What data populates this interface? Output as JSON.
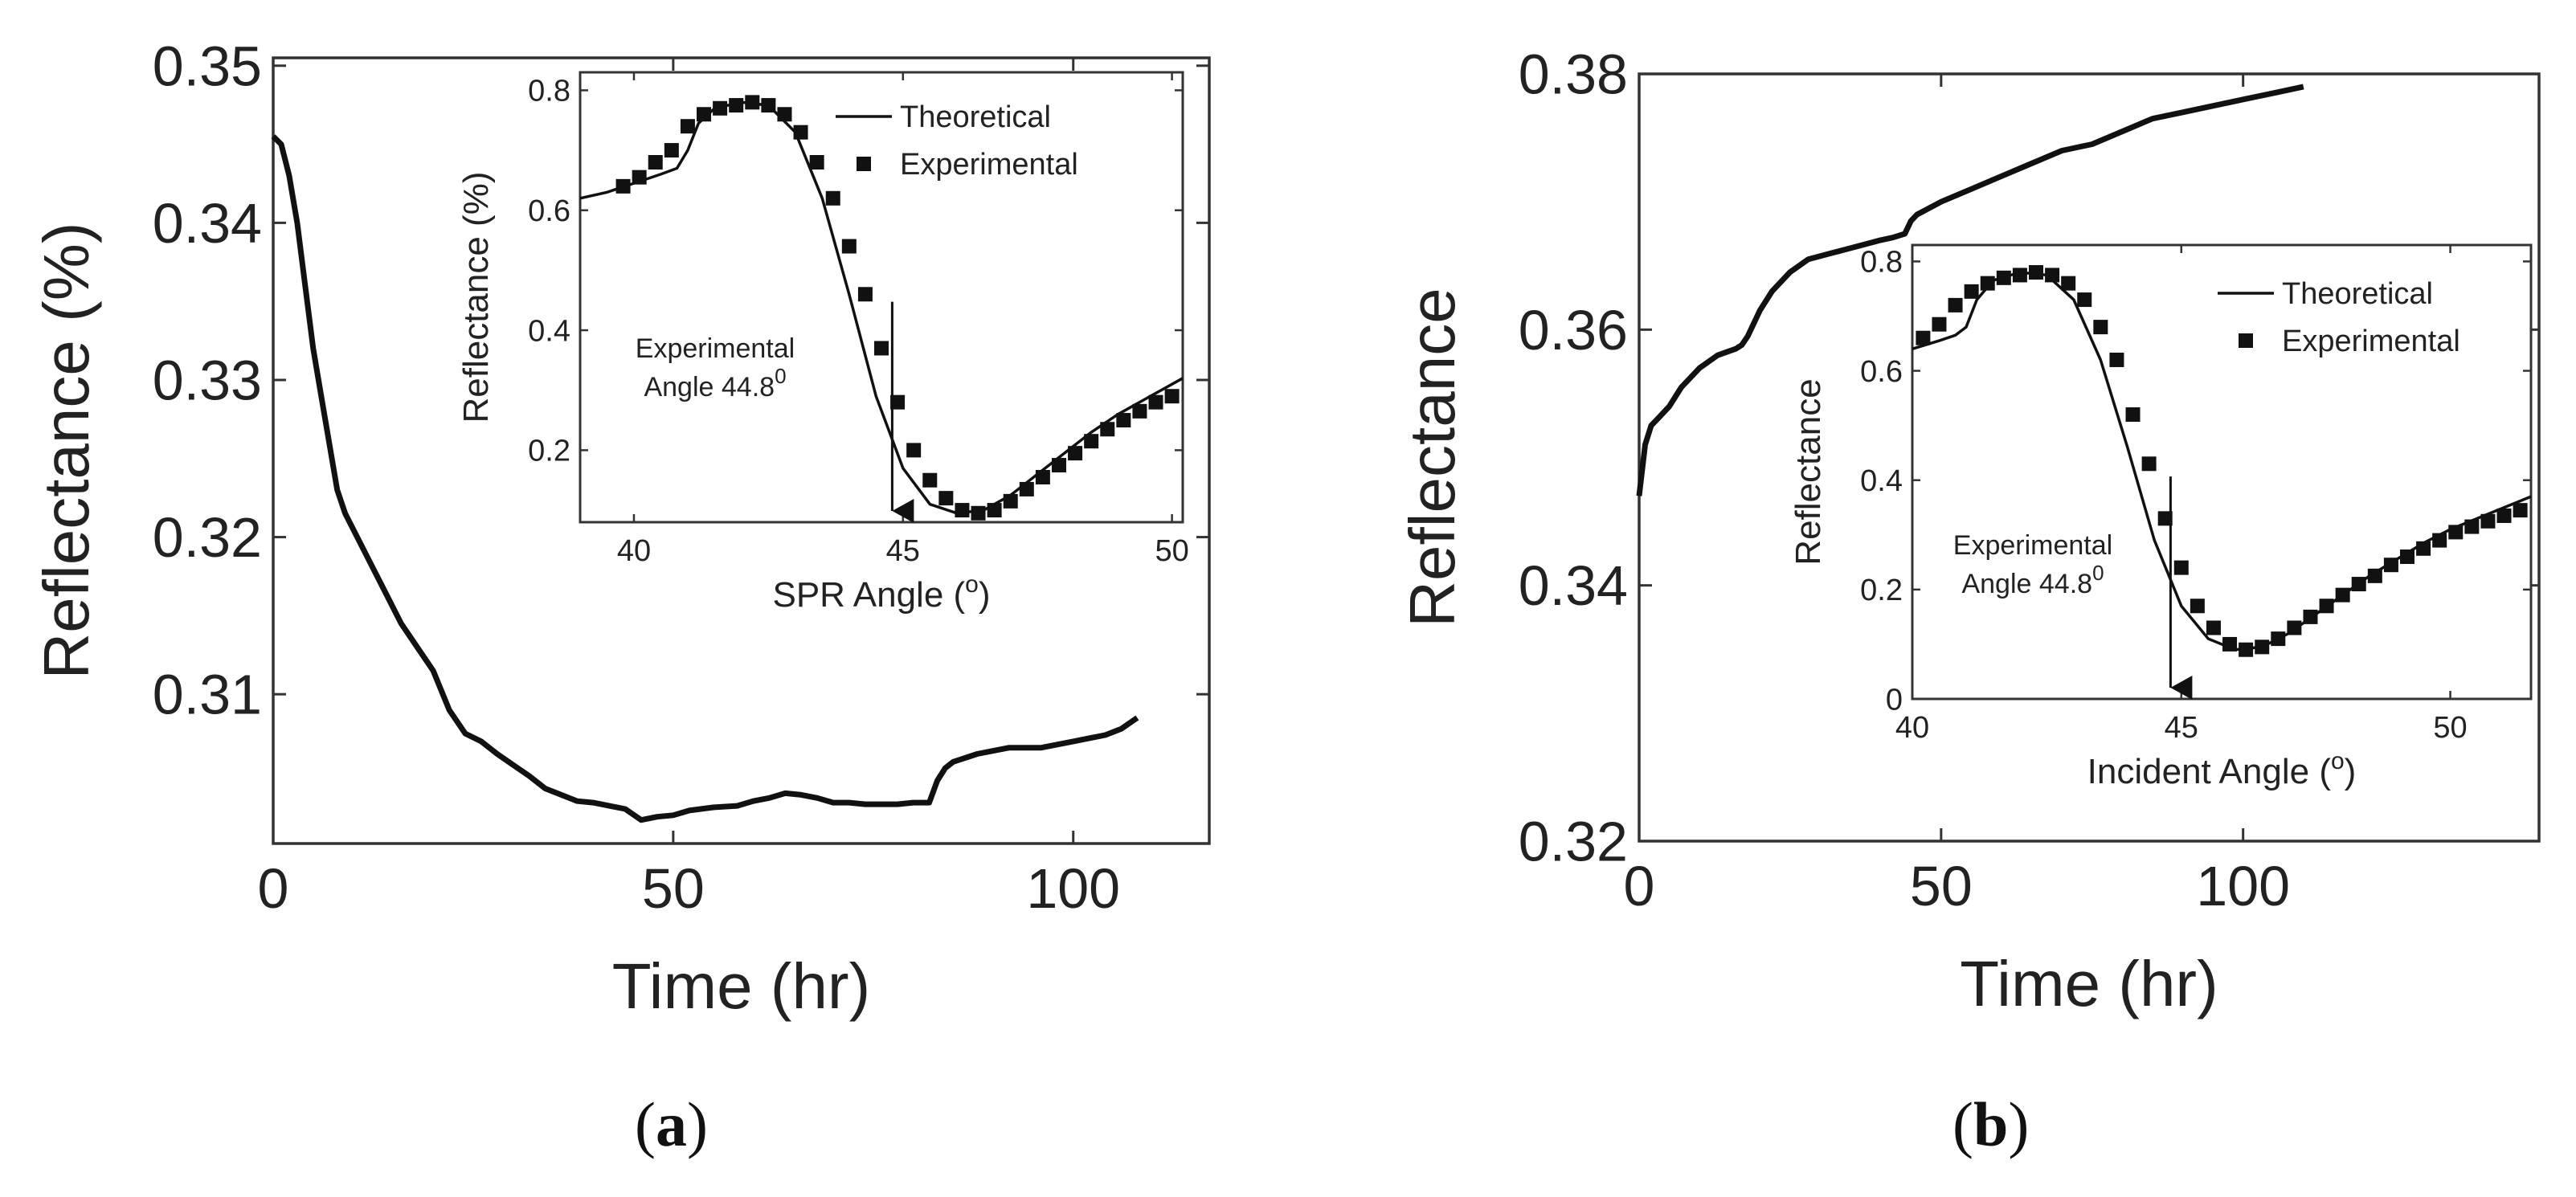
{
  "chart_data": [
    {
      "id": "a",
      "type": "line",
      "panel_label": "a",
      "xlabel": "Time (hr)",
      "ylabel": "Reflectance (%)",
      "xlim": [
        0,
        117
      ],
      "ylim": [
        0.3005,
        0.3505
      ],
      "xticks": [
        0,
        50,
        100
      ],
      "yticks": [
        0.31,
        0.32,
        0.33,
        0.34,
        0.35
      ],
      "series": [
        {
          "name": "Reflectance vs time",
          "x": [
            0,
            1,
            2,
            3,
            4,
            5,
            6,
            7,
            8,
            9,
            10,
            12,
            14,
            16,
            18,
            20,
            22,
            24,
            26,
            28,
            30,
            32,
            34,
            36,
            38,
            40,
            42,
            44,
            46,
            48,
            50,
            52,
            55,
            58,
            60,
            62,
            64,
            66,
            68,
            70,
            72,
            74,
            76,
            78,
            80,
            82,
            83,
            84,
            85,
            88,
            90,
            92,
            94,
            96,
            98,
            100,
            102,
            104,
            106,
            108
          ],
          "y": [
            0.3455,
            0.345,
            0.343,
            0.34,
            0.336,
            0.332,
            0.329,
            0.326,
            0.323,
            0.3215,
            0.3205,
            0.3185,
            0.3165,
            0.3145,
            0.313,
            0.3115,
            0.309,
            0.3075,
            0.307,
            0.3062,
            0.3055,
            0.3048,
            0.304,
            0.3036,
            0.3032,
            0.3031,
            0.3029,
            0.3027,
            0.302,
            0.3022,
            0.3023,
            0.3026,
            0.3028,
            0.3029,
            0.3032,
            0.3034,
            0.3037,
            0.3036,
            0.3034,
            0.3031,
            0.3031,
            0.303,
            0.303,
            0.303,
            0.3031,
            0.3031,
            0.3045,
            0.3053,
            0.3057,
            0.3062,
            0.3064,
            0.3066,
            0.3066,
            0.3066,
            0.3068,
            0.307,
            0.3072,
            0.3074,
            0.3078,
            0.3085
          ]
        }
      ],
      "inset": {
        "type": "line+scatter",
        "xlabel": "SPR Angle (o)",
        "xlabel_main": "SPR Angle (",
        "xlabel_sup": "o",
        "xlabel_end": ")",
        "ylabel": "Reflectance (%)",
        "xlim": [
          39,
          50.2
        ],
        "ylim": [
          0.08,
          0.83
        ],
        "xticks": [
          40,
          45,
          50
        ],
        "yticks": [
          0.2,
          0.4,
          0.6,
          0.8
        ],
        "legend": [
          "Theoretical",
          "Experimental"
        ],
        "annotation_line1": "Experimental",
        "annotation_line2": "Angle 44.8",
        "annotation_sup": "0",
        "arrow_x": 44.8,
        "theoretical": {
          "x": [
            39,
            39.5,
            40,
            40.5,
            40.8,
            41,
            41.2,
            41.5,
            42,
            42.5,
            43,
            43.5,
            44,
            44.5,
            45,
            45.5,
            46,
            46.5,
            47,
            47.5,
            48,
            48.5,
            49,
            49.5,
            50.2
          ],
          "y": [
            0.62,
            0.63,
            0.645,
            0.66,
            0.67,
            0.7,
            0.745,
            0.77,
            0.78,
            0.775,
            0.73,
            0.62,
            0.46,
            0.29,
            0.17,
            0.11,
            0.095,
            0.1,
            0.125,
            0.16,
            0.195,
            0.23,
            0.26,
            0.285,
            0.32
          ]
        },
        "experimental": {
          "x": [
            39.8,
            40.1,
            40.4,
            40.7,
            41.0,
            41.3,
            41.6,
            41.9,
            42.2,
            42.5,
            42.8,
            43.1,
            43.4,
            43.7,
            44.0,
            44.3,
            44.6,
            44.9,
            45.2,
            45.5,
            45.8,
            46.1,
            46.4,
            46.7,
            47.0,
            47.3,
            47.6,
            47.9,
            48.2,
            48.5,
            48.8,
            49.1,
            49.4,
            49.7,
            50.0
          ],
          "y": [
            0.64,
            0.655,
            0.68,
            0.7,
            0.74,
            0.76,
            0.77,
            0.775,
            0.78,
            0.775,
            0.76,
            0.73,
            0.68,
            0.62,
            0.54,
            0.46,
            0.37,
            0.28,
            0.2,
            0.15,
            0.12,
            0.1,
            0.095,
            0.1,
            0.115,
            0.135,
            0.155,
            0.175,
            0.195,
            0.215,
            0.235,
            0.25,
            0.265,
            0.28,
            0.29
          ]
        }
      }
    },
    {
      "id": "b",
      "type": "line",
      "panel_label": "b",
      "xlabel": "Time (hr)",
      "ylabel": "Reflectance",
      "xlim": [
        0,
        149
      ],
      "ylim": [
        0.32,
        0.38
      ],
      "xticks": [
        0,
        50,
        100
      ],
      "yticks": [
        0.32,
        0.34,
        0.36,
        0.38
      ],
      "series": [
        {
          "name": "Reflectance vs time",
          "x": [
            0,
            1,
            2,
            3,
            5,
            7,
            10,
            13,
            16,
            17,
            18,
            20,
            22,
            25,
            28,
            32,
            36,
            40,
            42,
            44,
            45,
            46,
            50,
            55,
            60,
            65,
            70,
            75,
            80,
            85,
            90,
            95,
            100,
            105,
            110
          ],
          "y": [
            0.347,
            0.351,
            0.3525,
            0.353,
            0.354,
            0.3555,
            0.357,
            0.358,
            0.3585,
            0.3588,
            0.3595,
            0.3615,
            0.363,
            0.3645,
            0.3655,
            0.366,
            0.3665,
            0.367,
            0.3672,
            0.3675,
            0.3685,
            0.369,
            0.37,
            0.371,
            0.372,
            0.373,
            0.374,
            0.3745,
            0.3755,
            0.3765,
            0.377,
            0.3775,
            0.378,
            0.3785,
            0.379
          ]
        }
      ],
      "inset": {
        "type": "line+scatter",
        "xlabel": "Incident Angle (o)",
        "xlabel_main": "Incident Angle (",
        "xlabel_sup": "o",
        "xlabel_end": ")",
        "ylabel": "Reflectance",
        "xlim": [
          40,
          51.5
        ],
        "ylim": [
          0,
          0.83
        ],
        "xticks": [
          40,
          45,
          50
        ],
        "yticks": [
          0,
          0.2,
          0.4,
          0.6,
          0.8
        ],
        "legend": [
          "Theoretical",
          "Experimental"
        ],
        "annotation_line1": "Experimental",
        "annotation_line2": "Angle 44.8",
        "annotation_sup": "0",
        "arrow_x": 44.8,
        "theoretical": {
          "x": [
            40,
            40.5,
            40.8,
            41,
            41.2,
            41.5,
            42,
            42.5,
            43,
            43.5,
            44,
            44.5,
            45,
            45.5,
            46,
            46.5,
            47,
            47.5,
            48,
            48.5,
            49,
            49.5,
            50,
            50.5,
            51,
            51.5
          ],
          "y": [
            0.64,
            0.655,
            0.665,
            0.68,
            0.73,
            0.765,
            0.78,
            0.775,
            0.73,
            0.62,
            0.46,
            0.29,
            0.17,
            0.11,
            0.09,
            0.095,
            0.12,
            0.155,
            0.19,
            0.225,
            0.255,
            0.285,
            0.31,
            0.33,
            0.35,
            0.37
          ]
        },
        "experimental": {
          "x": [
            40.2,
            40.5,
            40.8,
            41.1,
            41.4,
            41.7,
            42.0,
            42.3,
            42.6,
            42.9,
            43.2,
            43.5,
            43.8,
            44.1,
            44.4,
            44.7,
            45.0,
            45.3,
            45.6,
            45.9,
            46.2,
            46.5,
            46.8,
            47.1,
            47.4,
            47.7,
            48.0,
            48.3,
            48.6,
            48.9,
            49.2,
            49.5,
            49.8,
            50.1,
            50.4,
            50.7,
            51.0,
            51.3
          ],
          "y": [
            0.66,
            0.685,
            0.72,
            0.745,
            0.76,
            0.77,
            0.775,
            0.78,
            0.775,
            0.76,
            0.73,
            0.68,
            0.62,
            0.52,
            0.43,
            0.33,
            0.24,
            0.17,
            0.13,
            0.1,
            0.09,
            0.095,
            0.11,
            0.13,
            0.15,
            0.17,
            0.19,
            0.21,
            0.225,
            0.245,
            0.26,
            0.275,
            0.29,
            0.305,
            0.315,
            0.325,
            0.335,
            0.345
          ]
        }
      }
    }
  ]
}
